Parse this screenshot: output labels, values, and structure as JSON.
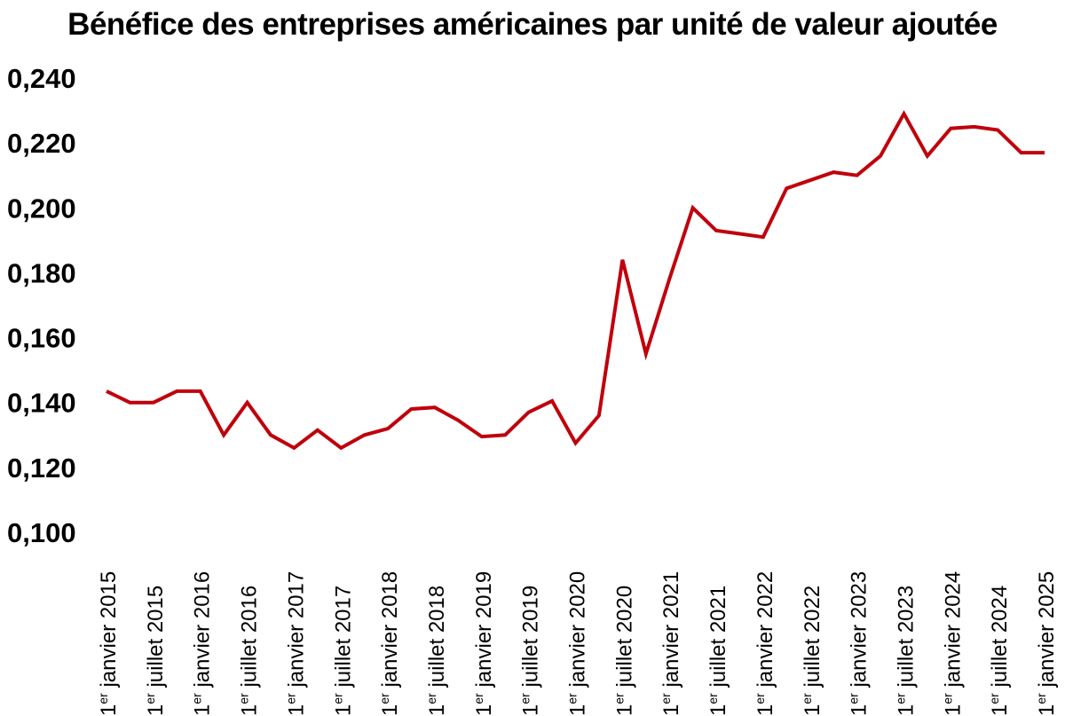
{
  "chart_data": {
    "type": "line",
    "title": "Bénéfice des entreprises américaines par unité de valeur ajoutée",
    "xlabel": "",
    "ylabel": "",
    "ylim": [
      0.1,
      0.24
    ],
    "yticks": [
      "0,100",
      "0,120",
      "0,140",
      "0,160",
      "0,180",
      "0,200",
      "0,220",
      "0,240"
    ],
    "ytick_values": [
      0.1,
      0.12,
      0.14,
      0.16,
      0.18,
      0.2,
      0.22,
      0.24
    ],
    "grid": false,
    "legend": "none",
    "line_color": "#c0000b",
    "x_tick_labels": [
      {
        "num": "1",
        "sup": "er",
        "text": " janvier 2015"
      },
      {
        "num": "1",
        "sup": "er",
        "text": " juillet 2015"
      },
      {
        "num": "1",
        "sup": "er",
        "text": " janvier 2016"
      },
      {
        "num": "1",
        "sup": "er",
        "text": " juillet 2016"
      },
      {
        "num": "1",
        "sup": "er",
        "text": " janvier 2017"
      },
      {
        "num": "1",
        "sup": "er",
        "text": " juillet 2017"
      },
      {
        "num": "1",
        "sup": "er",
        "text": " janvier 2018"
      },
      {
        "num": "1",
        "sup": "er",
        "text": " juillet 2018"
      },
      {
        "num": "1",
        "sup": "er",
        "text": " janvier 2019"
      },
      {
        "num": "1",
        "sup": "er",
        "text": " juillet 2019"
      },
      {
        "num": "1",
        "sup": "er",
        "text": " janvier 2020"
      },
      {
        "num": "1",
        "sup": "er",
        "text": " juillet 2020"
      },
      {
        "num": "1",
        "sup": "er",
        "text": " janvier 2021"
      },
      {
        "num": "1",
        "sup": "er",
        "text": " juillet 2021"
      },
      {
        "num": "1",
        "sup": "er",
        "text": " janvier 2022"
      },
      {
        "num": "1",
        "sup": "er",
        "text": " juillet 2022"
      },
      {
        "num": "1",
        "sup": "er",
        "text": " janvier 2023"
      },
      {
        "num": "1",
        "sup": "er",
        "text": " juillet 2023"
      },
      {
        "num": "1",
        "sup": "er",
        "text": " janvier 2024"
      },
      {
        "num": "1",
        "sup": "er",
        "text": " juillet 2024"
      },
      {
        "num": "1",
        "sup": "er",
        "text": " janvier 2025"
      }
    ],
    "series": [
      {
        "x": [
          "2015-01-01",
          "2015-04-01",
          "2015-07-01",
          "2015-10-01",
          "2016-01-01",
          "2016-04-01",
          "2016-07-01",
          "2016-10-01",
          "2017-01-01",
          "2017-04-01",
          "2017-07-01",
          "2017-10-01",
          "2018-01-01",
          "2018-04-01",
          "2018-07-01",
          "2018-10-01",
          "2019-01-01",
          "2019-04-01",
          "2019-07-01",
          "2019-10-01",
          "2020-01-01",
          "2020-04-01",
          "2020-07-01",
          "2020-10-01",
          "2021-01-01",
          "2021-04-01",
          "2021-07-01",
          "2021-10-01",
          "2022-01-01",
          "2022-04-01",
          "2022-07-01",
          "2022-10-01",
          "2023-01-01",
          "2023-04-01",
          "2023-07-01",
          "2023-10-01",
          "2024-01-01",
          "2024-04-01",
          "2024-07-01",
          "2024-10-01",
          "2025-01-01"
        ],
        "values": [
          0.1435,
          0.14,
          0.14,
          0.1435,
          0.1435,
          0.13,
          0.14,
          0.13,
          0.126,
          0.1315,
          0.126,
          0.13,
          0.132,
          0.138,
          0.1385,
          0.1345,
          0.1295,
          0.13,
          0.137,
          0.1405,
          0.1275,
          0.136,
          0.184,
          0.155,
          0.178,
          0.2,
          0.193,
          0.192,
          0.191,
          0.206,
          0.2085,
          0.211,
          0.21,
          0.216,
          0.229,
          0.216,
          0.2245,
          0.225,
          0.224,
          0.217,
          0.217
        ],
        "note_positions": "quarterly"
      }
    ]
  }
}
